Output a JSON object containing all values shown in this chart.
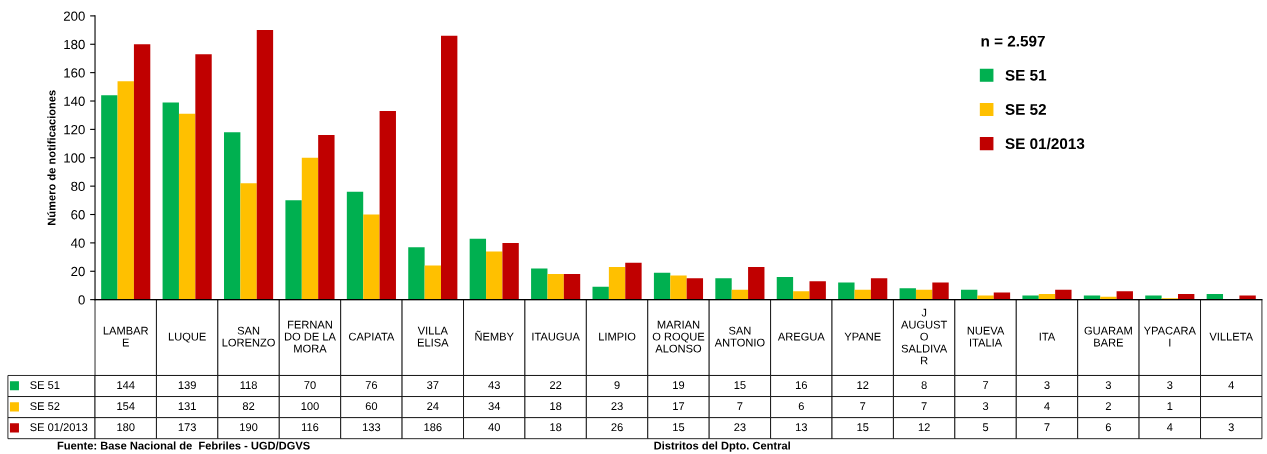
{
  "chart_data": {
    "type": "bar",
    "ylabel": "Número de notificaciones",
    "legend_title": "n = 2.597",
    "categories": [
      "LAMBAR\nE",
      "LUQUE",
      "SAN\nLORENZO",
      "FERNAN\nDO DE LA\nMORA",
      "CAPIATA",
      "VILLA\nELISA",
      "ÑEMBY",
      "ITAUGUA",
      "LIMPIO",
      "MARIAN\nO ROQUE\nALONSO",
      "SAN\nANTONIO",
      "AREGUA",
      "YPANE",
      "J\nAUGUST\nO\nSALDIVA\nR",
      "NUEVA\nITALIA",
      "ITA",
      "GUARAM\nBARE",
      "YPACARA\nI",
      "VILLETA"
    ],
    "series": [
      {
        "name": "SE 51",
        "color": "#00b050",
        "values": [
          144,
          139,
          118,
          70,
          76,
          37,
          43,
          22,
          9,
          19,
          15,
          16,
          12,
          8,
          7,
          3,
          3,
          3,
          4
        ]
      },
      {
        "name": "SE 52",
        "color": "#ffc000",
        "values": [
          154,
          131,
          82,
          100,
          60,
          24,
          34,
          18,
          23,
          17,
          7,
          6,
          7,
          7,
          3,
          4,
          2,
          1,
          null
        ]
      },
      {
        "name": "SE 01/2013",
        "color": "#c00000",
        "values": [
          180,
          173,
          190,
          116,
          133,
          186,
          40,
          18,
          26,
          15,
          23,
          13,
          15,
          12,
          5,
          7,
          6,
          4,
          3
        ]
      }
    ],
    "ylim": [
      0,
      200
    ],
    "yticks": [
      0,
      20,
      40,
      60,
      80,
      100,
      120,
      140,
      160,
      180,
      200
    ],
    "data_labels": true,
    "legend": "top right",
    "grid": false,
    "annotations": [
      "Fuente: Base Nacional de  Febriles - UGD/DGVS",
      "Distritos del Dpto. Central"
    ]
  }
}
